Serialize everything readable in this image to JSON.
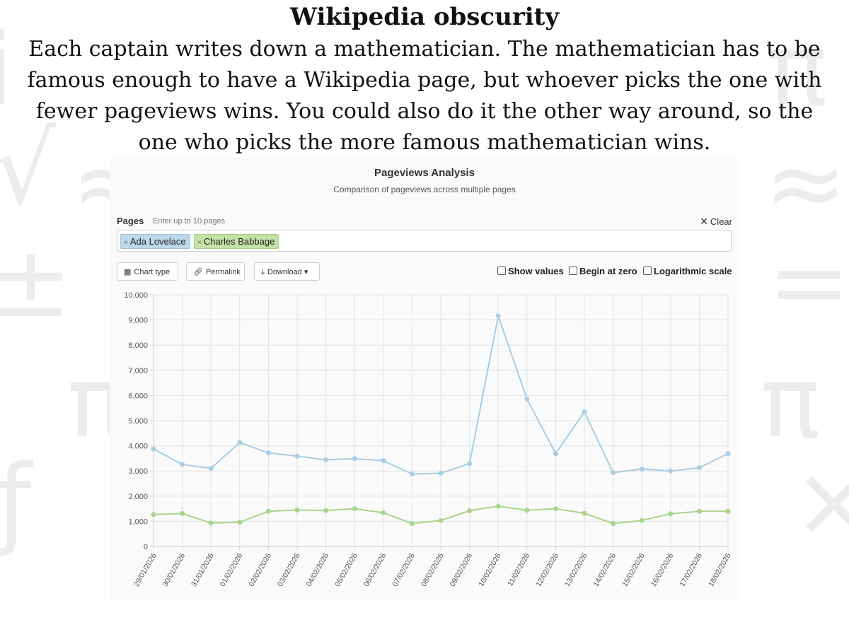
{
  "slide": {
    "title": "Wikipedia obscurity",
    "description": "Each captain writes down a mathematician. The mathematician has to be famous enough to have a Wikipedia page, but whoever picks the one with fewer pageviews wins. You could also do it the other way around, so the one who picks the more famous mathematician wins."
  },
  "tool": {
    "title": "Pageviews Analysis",
    "subtitle": "Comparison of pageviews across multiple pages",
    "pages_label": "Pages",
    "pages_hint": "Enter up to 10 pages",
    "clear_label": "Clear",
    "pages": [
      {
        "name": "Ada Lovelace",
        "color": "#bcd8ea"
      },
      {
        "name": "Charles Babbage",
        "color": "#c3e2a6"
      }
    ],
    "buttons": {
      "chart_type": "Chart type",
      "permalink": "Permalink",
      "download": "Download"
    },
    "options": {
      "show_values": "Show values",
      "begin_at_zero": "Begin at zero",
      "log_scale": "Logarithmic scale"
    }
  },
  "chart_data": {
    "type": "line",
    "title": "",
    "xlabel": "",
    "ylabel": "",
    "x": [
      "29/01/2026",
      "30/01/2026",
      "31/01/2026",
      "01/02/2026",
      "02/02/2026",
      "03/02/2026",
      "04/02/2026",
      "05/02/2026",
      "06/02/2026",
      "07/02/2026",
      "08/02/2026",
      "09/02/2026",
      "10/02/2026",
      "11/02/2026",
      "12/02/2026",
      "13/02/2026",
      "14/02/2026",
      "15/02/2026",
      "16/02/2026",
      "17/02/2026",
      "18/02/2026"
    ],
    "ylim": [
      0,
      10000
    ],
    "yticks": [
      "0",
      "1,000",
      "2,000",
      "3,000",
      "4,000",
      "5,000",
      "6,000",
      "7,000",
      "8,000",
      "9,000",
      "10,000"
    ],
    "grid": true,
    "series": [
      {
        "name": "Ada Lovelace",
        "color": "#a9cde3",
        "values": [
          3870,
          3260,
          3100,
          4130,
          3720,
          3590,
          3440,
          3490,
          3410,
          2880,
          2910,
          3290,
          9160,
          5860,
          3690,
          5350,
          2930,
          3080,
          3000,
          3130,
          3690
        ]
      },
      {
        "name": "Charles Babbage",
        "color": "#a8d58a",
        "values": [
          1270,
          1310,
          930,
          960,
          1400,
          1450,
          1430,
          1500,
          1340,
          910,
          1030,
          1420,
          1600,
          1440,
          1500,
          1320,
          910,
          1030,
          1300,
          1400,
          1400
        ]
      }
    ]
  }
}
